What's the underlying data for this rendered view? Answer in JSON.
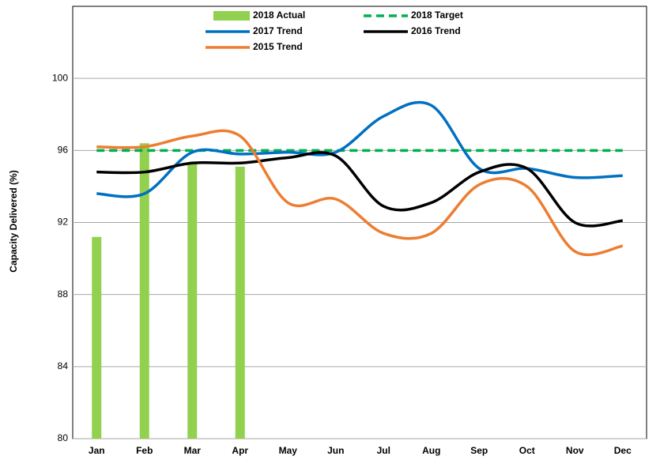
{
  "chart_data": {
    "type": "line",
    "y_label": "Capacity Delivered (%)",
    "categories": [
      "Jan",
      "Feb",
      "Mar",
      "Apr",
      "May",
      "Jun",
      "Jul",
      "Aug",
      "Sep",
      "Oct",
      "Nov",
      "Dec"
    ],
    "ylim": [
      80,
      104
    ],
    "yticks": [
      80,
      84,
      88,
      92,
      96,
      100
    ],
    "grid": true,
    "series": [
      {
        "name": "2018 Actual",
        "type": "bar",
        "color": "#92d050",
        "values": [
          91.2,
          96.4,
          95.3,
          95.1,
          null,
          null,
          null,
          null,
          null,
          null,
          null,
          null
        ]
      },
      {
        "name": "2018 Target",
        "type": "line",
        "dashed": true,
        "color": "#00b050",
        "values": [
          96,
          96,
          96,
          96,
          96,
          96,
          96,
          96,
          96,
          96,
          96,
          96
        ]
      },
      {
        "name": "2017 Trend",
        "type": "line",
        "color": "#0070c0",
        "values": [
          93.6,
          93.6,
          95.9,
          95.8,
          95.9,
          95.9,
          97.9,
          98.5,
          95.0,
          95.0,
          94.5,
          94.6
        ]
      },
      {
        "name": "2016 Trend",
        "type": "line",
        "color": "#000000",
        "values": [
          94.8,
          94.8,
          95.3,
          95.3,
          95.6,
          95.7,
          92.9,
          93.1,
          94.8,
          95.0,
          92.0,
          92.1
        ]
      },
      {
        "name": "2015 Trend",
        "type": "line",
        "color": "#ed7d31",
        "values": [
          96.2,
          96.2,
          96.8,
          96.8,
          93.1,
          93.3,
          91.4,
          91.4,
          94.1,
          94.0,
          90.4,
          90.7
        ]
      }
    ]
  }
}
